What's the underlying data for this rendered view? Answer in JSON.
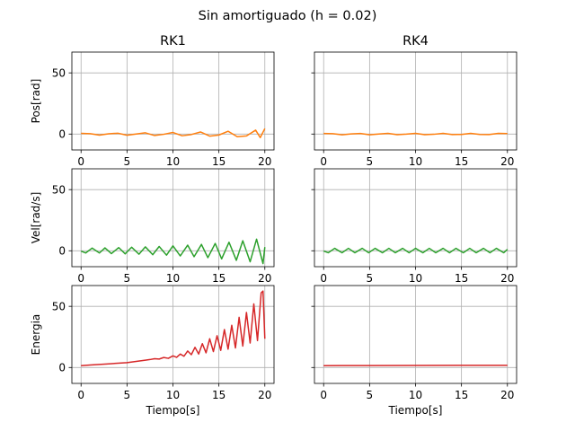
{
  "suptitle": "Sin amortiguado (h = 0.02)",
  "columns": [
    "RK1",
    "RK4"
  ],
  "row_labels": [
    "Pos[rad]",
    "Vel[rad/s]",
    "Energia"
  ],
  "xlabel": "Tiempo[s]",
  "colors": {
    "position": "#ff7f0e",
    "velocity": "#2ca02c",
    "energy": "#d62728",
    "grid": "#b0b0b0",
    "axes": "#000000"
  },
  "chart_data": [
    {
      "type": "line",
      "panel": "pos-rk1",
      "title": "RK1",
      "ylabel": "Pos[rad]",
      "xlabel": "",
      "xlim": [
        -1,
        21
      ],
      "ylim": [
        -13,
        67
      ],
      "xticks": [
        0,
        5,
        10,
        15,
        20
      ],
      "yticks": [
        0,
        50
      ],
      "grid": true,
      "series": [
        {
          "color": "#ff7f0e",
          "x": [
            0,
            1,
            2,
            3,
            4,
            5,
            6,
            7,
            8,
            9,
            10,
            11,
            12,
            13,
            14,
            15,
            16,
            17,
            18,
            19,
            19.5,
            20
          ],
          "y": [
            0.6,
            0.3,
            -0.9,
            0.2,
            0.7,
            -1.0,
            0.0,
            1.0,
            -1.2,
            -0.2,
            1.3,
            -1.4,
            -0.4,
            1.7,
            -1.7,
            -0.8,
            2.3,
            -2.2,
            -1.5,
            3.2,
            -2.9,
            4.5
          ]
        }
      ]
    },
    {
      "type": "line",
      "panel": "pos-rk4",
      "title": "RK4",
      "ylabel": "",
      "xlabel": "",
      "xlim": [
        -1,
        21
      ],
      "ylim": [
        -13,
        67
      ],
      "xticks": [
        0,
        5,
        10,
        15,
        20
      ],
      "yticks": [
        0,
        50
      ],
      "grid": true,
      "series": [
        {
          "color": "#ff7f0e",
          "x": [
            0,
            1,
            2,
            3,
            4,
            5,
            6,
            7,
            8,
            9,
            10,
            11,
            12,
            13,
            14,
            15,
            16,
            17,
            18,
            19,
            20
          ],
          "y": [
            0.5,
            0.3,
            -0.6,
            0.1,
            0.5,
            -0.6,
            0.0,
            0.6,
            -0.5,
            -0.1,
            0.6,
            -0.5,
            -0.2,
            0.6,
            -0.4,
            -0.3,
            0.6,
            -0.3,
            -0.4,
            0.6,
            0.4
          ]
        }
      ]
    },
    {
      "type": "line",
      "panel": "vel-rk1",
      "title": "",
      "ylabel": "Vel[rad/s]",
      "xlabel": "",
      "xlim": [
        -1,
        21
      ],
      "ylim": [
        -13,
        67
      ],
      "xticks": [
        0,
        5,
        10,
        15,
        20
      ],
      "yticks": [
        0,
        50
      ],
      "grid": true,
      "series": [
        {
          "color": "#2ca02c",
          "x": [
            0,
            0.5,
            1.2,
            2,
            2.6,
            3.3,
            4.1,
            4.8,
            5.5,
            6.3,
            7.0,
            7.8,
            8.5,
            9.3,
            10.0,
            10.8,
            11.6,
            12.3,
            13.1,
            13.8,
            14.6,
            15.3,
            16.1,
            16.9,
            17.6,
            18.4,
            19.1,
            19.8,
            20
          ],
          "y": [
            -0.3,
            -1.8,
            2.2,
            -1.8,
            2.4,
            -2.3,
            2.6,
            -2.5,
            2.9,
            -2.8,
            3.2,
            -3.2,
            3.5,
            -3.6,
            4.0,
            -4.2,
            4.6,
            -4.8,
            5.2,
            -5.6,
            6.0,
            -6.6,
            7.0,
            -7.8,
            8.2,
            -9.0,
            9.5,
            -10.5,
            3.0
          ]
        }
      ]
    },
    {
      "type": "line",
      "panel": "vel-rk4",
      "title": "",
      "ylabel": "",
      "xlabel": "",
      "xlim": [
        -1,
        21
      ],
      "ylim": [
        -13,
        67
      ],
      "xticks": [
        0,
        5,
        10,
        15,
        20
      ],
      "yticks": [
        0,
        50
      ],
      "grid": true,
      "series": [
        {
          "color": "#2ca02c",
          "x": [
            0,
            0.5,
            1.2,
            2,
            2.7,
            3.4,
            4.2,
            4.9,
            5.6,
            6.4,
            7.1,
            7.8,
            8.6,
            9.3,
            10.0,
            10.8,
            11.5,
            12.2,
            13.0,
            13.7,
            14.4,
            15.2,
            15.9,
            16.6,
            17.4,
            18.1,
            18.8,
            19.6,
            20
          ],
          "y": [
            -0.2,
            -1.6,
            2.0,
            -1.6,
            2.0,
            -1.6,
            2.0,
            -1.6,
            2.0,
            -1.6,
            2.0,
            -1.6,
            2.0,
            -1.6,
            2.0,
            -1.6,
            2.0,
            -1.6,
            2.0,
            -1.6,
            2.0,
            -1.6,
            2.0,
            -1.6,
            2.0,
            -1.6,
            2.0,
            -1.6,
            1.2
          ]
        }
      ]
    },
    {
      "type": "line",
      "panel": "energy-rk1",
      "title": "",
      "ylabel": "Energia",
      "xlabel": "Tiempo[s]",
      "xlim": [
        -1,
        21
      ],
      "ylim": [
        -13,
        67
      ],
      "xticks": [
        0,
        5,
        10,
        15,
        20
      ],
      "yticks": [
        0,
        50
      ],
      "grid": true,
      "series": [
        {
          "color": "#d62728",
          "x": [
            0,
            1,
            2,
            3,
            4,
            5,
            6,
            7,
            7.5,
            8,
            8.5,
            9,
            9.5,
            10,
            10.4,
            10.8,
            11.2,
            11.6,
            12.0,
            12.4,
            12.8,
            13.2,
            13.6,
            14.0,
            14.4,
            14.8,
            15.2,
            15.6,
            16.0,
            16.4,
            16.8,
            17.2,
            17.6,
            18.0,
            18.4,
            18.8,
            19.2,
            19.6,
            19.8,
            20
          ],
          "y": [
            1.5,
            2.0,
            2.5,
            3.0,
            3.5,
            4.0,
            5.0,
            6.0,
            6.5,
            7.2,
            6.9,
            8.2,
            7.5,
            9.5,
            8.3,
            11.0,
            9.2,
            13.5,
            10.5,
            16.5,
            11.0,
            19.5,
            12.0,
            23.5,
            13.0,
            26.0,
            14.0,
            31.0,
            15.0,
            34.5,
            16.0,
            41.0,
            17.5,
            45.0,
            20.0,
            52.0,
            22.0,
            61.0,
            62.5,
            23.5
          ]
        }
      ]
    },
    {
      "type": "line",
      "panel": "energy-rk4",
      "title": "",
      "ylabel": "",
      "xlabel": "Tiempo[s]",
      "xlim": [
        -1,
        21
      ],
      "ylim": [
        -13,
        67
      ],
      "xticks": [
        0,
        5,
        10,
        15,
        20
      ],
      "yticks": [
        0,
        50
      ],
      "grid": true,
      "series": [
        {
          "color": "#d62728",
          "x": [
            0,
            5,
            10,
            15,
            20
          ],
          "y": [
            1.5,
            1.6,
            1.7,
            1.75,
            1.8
          ]
        }
      ]
    }
  ]
}
